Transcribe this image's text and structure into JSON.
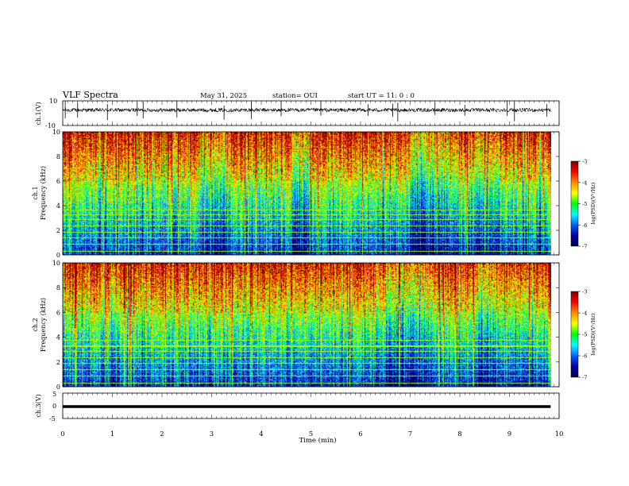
{
  "header": {
    "title": "VLF Spectra",
    "date": "May 31, 2025",
    "station": "station= OUI",
    "start_ut": "start UT = 11: 0 : 0"
  },
  "colorbar": {
    "label": "log(PSD)(V²/Hz)",
    "ticks": [
      "-3",
      "-4",
      "-5",
      "-6",
      "-7"
    ],
    "colors": [
      "#7a0000",
      "#ff0000",
      "#ff8c00",
      "#ffff00",
      "#00ff00",
      "#00ffff",
      "#0060ff",
      "#0000a0",
      "#000050"
    ]
  },
  "chart_data": [
    {
      "type": "line",
      "name": "ch.1 waveform",
      "ylabel": "ch.1(V)",
      "ylim": [
        -10,
        10
      ],
      "yticks": [
        "10",
        "-10"
      ],
      "xlim": [
        0,
        10
      ],
      "baseline": 2.5,
      "noise_amplitude": 1.5,
      "spike_times_min": [
        0.05,
        0.3,
        0.9,
        1.5,
        1.62,
        2.3,
        3.25,
        3.8,
        4.4,
        5.2,
        6.15,
        6.65,
        6.75,
        7.5,
        8.1,
        8.95,
        9.1,
        9.75
      ],
      "color": "#000000"
    },
    {
      "type": "heatmap",
      "name": "ch.1 spectrogram",
      "ylabel_lines": [
        "ch.1",
        "Frequency (kHz)"
      ],
      "ylim": [
        0,
        10
      ],
      "yticks": [
        "0",
        "2",
        "4",
        "6",
        "8",
        "10"
      ],
      "xlim": [
        0,
        10
      ],
      "zlim": [
        -7,
        -3
      ],
      "z_label": "log(PSD)(V²/Hz)",
      "description_bands_khz": [
        0.3,
        0.9,
        1.4,
        1.9,
        2.4,
        2.9,
        3.3,
        3.7
      ],
      "quiet_intervals_min": [
        [
          2.8,
          3.3
        ],
        [
          4.6,
          5.0
        ],
        [
          7.0,
          7.8
        ],
        [
          8.3,
          8.8
        ]
      ]
    },
    {
      "type": "heatmap",
      "name": "ch.2 spectrogram",
      "ylabel_lines": [
        "ch.2",
        "Frequency (kHz)"
      ],
      "ylim": [
        0,
        10
      ],
      "yticks": [
        "0",
        "2",
        "4",
        "6",
        "8",
        "10"
      ],
      "xlim": [
        0,
        10
      ],
      "zlim": [
        -7,
        -3
      ],
      "z_label": "log(PSD)(V²/Hz)",
      "description_bands_khz": [
        0.3,
        0.9,
        1.4,
        1.9,
        2.4,
        2.9,
        3.3,
        3.8
      ],
      "quiet_intervals_min": [
        [
          6.5,
          7.4
        ],
        [
          8.3,
          8.8
        ]
      ]
    },
    {
      "type": "line",
      "name": "ch.3 waveform",
      "ylabel": "ch.3(V)",
      "ylim": [
        -5,
        5
      ],
      "yticks": [
        "5",
        "0",
        "-5"
      ],
      "xlim": [
        0,
        10
      ],
      "constant_value": -0.3,
      "color": "#000000"
    }
  ],
  "xaxis": {
    "label": "Time (min)",
    "ticks": [
      "0",
      "1",
      "2",
      "3",
      "4",
      "5",
      "6",
      "7",
      "8",
      "9",
      "10"
    ],
    "range": [
      0,
      10
    ],
    "data_end": 9.83
  }
}
